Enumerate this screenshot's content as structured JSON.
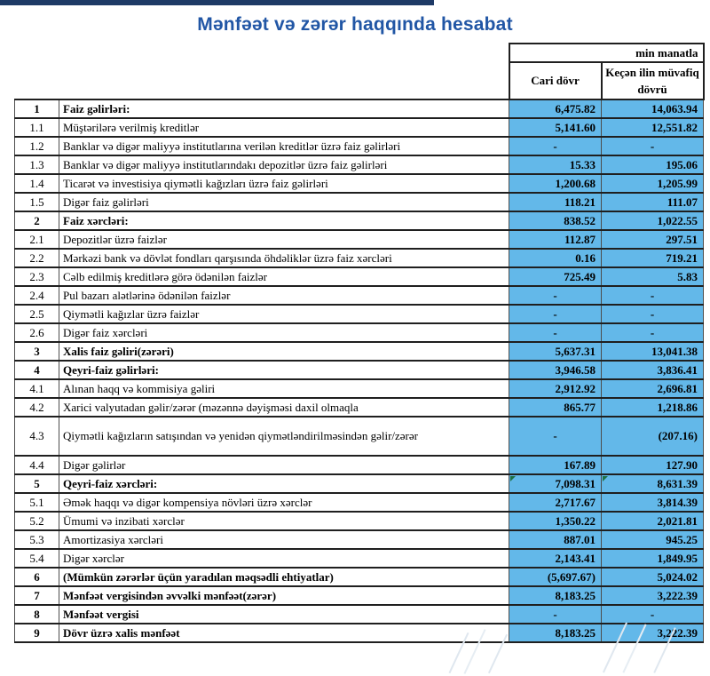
{
  "title": "Mənfəət və zərər haqqında hesabat",
  "unit_label": "min manatla",
  "columns": {
    "current": "Cari dövr",
    "previous": "Keçən ilin müvafiq dövrü"
  },
  "colors": {
    "cell_blue": "#63B8E9",
    "title_blue": "#2156A5",
    "top_bar_navy": "#1E3A66",
    "error_flag_green": "#1E7145"
  },
  "rows": [
    {
      "no": "1",
      "label": "Faiz gəlirləri:",
      "current": "6,475.82",
      "previous": "14,063.94",
      "bold": true
    },
    {
      "no": "1.1",
      "label": "Müştərilərə verilmiş kreditlər",
      "current": "5,141.60",
      "previous": "12,551.82"
    },
    {
      "no": "1.2",
      "label": "Banklar və digər maliyyə institutlarına verilən kreditlər üzrə faiz gəlirləri",
      "current": "-",
      "previous": "-"
    },
    {
      "no": "1.3",
      "label": "Banklar və digər maliyyə institutlarındakı depozitlər üzrə faiz gəlirləri",
      "current": "15.33",
      "previous": "195.06"
    },
    {
      "no": "1.4",
      "label": "Ticarət və investisiya qiymətli kağızları üzrə faiz gəlirləri",
      "current": "1,200.68",
      "previous": "1,205.99"
    },
    {
      "no": "1.5",
      "label": "Digər faiz gəlirləri",
      "current": "118.21",
      "previous": "111.07"
    },
    {
      "no": "2",
      "label": "Faiz xərcləri:",
      "current": "838.52",
      "previous": "1,022.55",
      "bold": true
    },
    {
      "no": "2.1",
      "label": "Depozitlər üzrə faizlər",
      "current": "112.87",
      "previous": "297.51"
    },
    {
      "no": "2.2",
      "label": "Mərkəzi bank və dövlət fondları qarşısında öhdəliklər üzrə faiz xərcləri",
      "current": "0.16",
      "previous": "719.21"
    },
    {
      "no": "2.3",
      "label": "Cəlb edilmiş kreditlərə görə ödənilən faizlər",
      "current": "725.49",
      "previous": "5.83"
    },
    {
      "no": "2.4",
      "label": "Pul bazarı alətlərinə ödənilən faizlər",
      "current": "-",
      "previous": "-"
    },
    {
      "no": "2.5",
      "label": "Qiymətli kağızlar üzrə faizlər",
      "current": "-",
      "previous": "-"
    },
    {
      "no": "2.6",
      "label": "Digər faiz xərcləri",
      "current": "-",
      "previous": "-"
    },
    {
      "no": "3",
      "label": "Xalis faiz gəliri(zərəri)",
      "current": "5,637.31",
      "previous": "13,041.38",
      "bold": true
    },
    {
      "no": "4",
      "label": "Qeyri-faiz gəlirləri:",
      "current": "3,946.58",
      "previous": "3,836.41",
      "bold": true
    },
    {
      "no": "4.1",
      "label": "Alınan haqq və kommisiya gəliri",
      "current": "2,912.92",
      "previous": "2,696.81"
    },
    {
      "no": "4.2",
      "label": "Xarici valyutadan gəlir/zərər (məzənnə dəyişməsi daxil olmaqla",
      "current": "865.77",
      "previous": "1,218.86"
    },
    {
      "no": "4.3",
      "label": "Qiymətli kağızların satışından və yenidən qiymətləndirilməsindən gəlir/zərər",
      "current": "-",
      "previous": "(207.16)",
      "tall": true
    },
    {
      "no": "4.4",
      "label": "Digər gəlirlər",
      "current": "167.89",
      "previous": "127.90"
    },
    {
      "no": "5",
      "label": "Qeyri-faiz xərcləri:",
      "current": "7,098.31",
      "previous": "8,631.39",
      "bold": true,
      "flag": true
    },
    {
      "no": "5.1",
      "label": "Əmək haqqı və digər kompensiya növləri üzrə xərclər",
      "current": "2,717.67",
      "previous": "3,814.39"
    },
    {
      "no": "5.2",
      "label": "Ümumi və inzibati xərclər",
      "current": "1,350.22",
      "previous": "2,021.81"
    },
    {
      "no": "5.3",
      "label": "Amortizasiya xərcləri",
      "current": "887.01",
      "previous": "945.25"
    },
    {
      "no": "5.4",
      "label": "Digər xərclər",
      "current": "2,143.41",
      "previous": "1,849.95"
    },
    {
      "no": "6",
      "label": "(Mümkün zərərlər üçün yaradılan məqsədli ehtiyatlar)",
      "current": "(5,697.67)",
      "previous": "5,024.02",
      "bold": true
    },
    {
      "no": "7",
      "label": "Mənfəət vergisindən əvvəlki mənfəət(zərər)",
      "current": "8,183.25",
      "previous": "3,222.39",
      "bold": true
    },
    {
      "no": "8",
      "label": "Mənfəət vergisi",
      "current": "-",
      "previous": "-",
      "bold": true
    },
    {
      "no": "9",
      "label": "Dövr üzrə xalis mənfəət",
      "current": "8,183.25",
      "previous": "3,222.39",
      "bold": true
    }
  ]
}
